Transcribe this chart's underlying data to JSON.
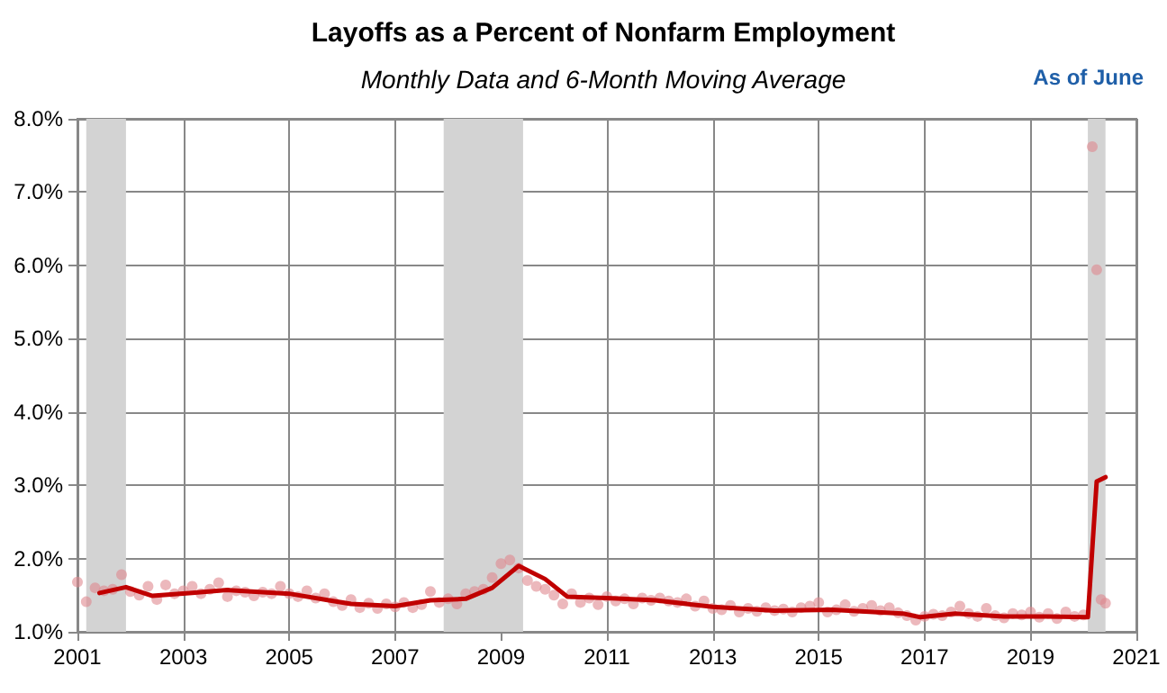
{
  "chart_data": {
    "type": "scatter",
    "title": "Layoffs as a Percent of Nonfarm Employment",
    "subtitle": "Monthly Data and 6-Month Moving Average",
    "annotations": [
      "As of June"
    ],
    "xlim": [
      "2001",
      "2021"
    ],
    "xticks": [
      "2001",
      "2003",
      "2005",
      "2007",
      "2009",
      "2011",
      "2013",
      "2015",
      "2017",
      "2019",
      "2021"
    ],
    "ylim": [
      1,
      8
    ],
    "yticks": [
      {
        "value": 1,
        "label": "1.0%"
      },
      {
        "value": 2,
        "label": "2.0%"
      },
      {
        "value": 3,
        "label": "3.0%"
      },
      {
        "value": 4,
        "label": "4.0%"
      },
      {
        "value": 5,
        "label": "5.0%"
      },
      {
        "value": 6,
        "label": "6.0%"
      },
      {
        "value": 7,
        "label": "7.0%"
      },
      {
        "value": 8,
        "label": "8.0%"
      }
    ],
    "grid": true,
    "bands": [
      {
        "axis": "x",
        "from": "2001-03",
        "to": "2001-12",
        "color": "#d3d3d3"
      },
      {
        "axis": "x",
        "from": "2007-12",
        "to": "2009-06",
        "color": "#d3d3d3"
      },
      {
        "axis": "x",
        "from": "2020-02",
        "to": "2020-06",
        "color": "#d3d3d3"
      }
    ],
    "series": [
      {
        "color": "#e08890",
        "marker": "circle",
        "x": [
          "2001-01",
          "2001-03",
          "2001-05",
          "2001-07",
          "2001-09",
          "2001-11",
          "2002-01",
          "2002-03",
          "2002-05",
          "2002-07",
          "2002-09",
          "2002-11",
          "2003-01",
          "2003-03",
          "2003-05",
          "2003-07",
          "2003-09",
          "2003-11",
          "2004-01",
          "2004-03",
          "2004-05",
          "2004-07",
          "2004-09",
          "2004-11",
          "2005-01",
          "2005-03",
          "2005-05",
          "2005-07",
          "2005-09",
          "2005-11",
          "2006-01",
          "2006-03",
          "2006-05",
          "2006-07",
          "2006-09",
          "2006-11",
          "2007-01",
          "2007-03",
          "2007-05",
          "2007-07",
          "2007-09",
          "2007-11",
          "2008-01",
          "2008-03",
          "2008-05",
          "2008-07",
          "2008-09",
          "2008-11",
          "2009-01",
          "2009-03",
          "2009-05",
          "2009-07",
          "2009-09",
          "2009-11",
          "2010-01",
          "2010-03",
          "2010-05",
          "2010-07",
          "2010-09",
          "2010-11",
          "2011-01",
          "2011-03",
          "2011-05",
          "2011-07",
          "2011-09",
          "2011-11",
          "2012-01",
          "2012-03",
          "2012-05",
          "2012-07",
          "2012-09",
          "2012-11",
          "2013-01",
          "2013-03",
          "2013-05",
          "2013-07",
          "2013-09",
          "2013-11",
          "2014-01",
          "2014-03",
          "2014-05",
          "2014-07",
          "2014-09",
          "2014-11",
          "2015-01",
          "2015-03",
          "2015-05",
          "2015-07",
          "2015-09",
          "2015-11",
          "2016-01",
          "2016-03",
          "2016-05",
          "2016-07",
          "2016-09",
          "2016-11",
          "2017-01",
          "2017-03",
          "2017-05",
          "2017-07",
          "2017-09",
          "2017-11",
          "2018-01",
          "2018-03",
          "2018-05",
          "2018-07",
          "2018-09",
          "2018-11",
          "2019-01",
          "2019-03",
          "2019-05",
          "2019-07",
          "2019-09",
          "2019-11",
          "2020-01",
          "2020-03",
          "2020-04",
          "2020-05",
          "2020-06"
        ],
        "values": [
          1.68,
          1.41,
          1.6,
          1.56,
          1.58,
          1.78,
          1.55,
          1.5,
          1.62,
          1.44,
          1.64,
          1.52,
          1.56,
          1.62,
          1.52,
          1.58,
          1.67,
          1.48,
          1.56,
          1.54,
          1.49,
          1.54,
          1.52,
          1.62,
          1.52,
          1.48,
          1.56,
          1.46,
          1.52,
          1.41,
          1.36,
          1.44,
          1.33,
          1.39,
          1.32,
          1.38,
          1.34,
          1.4,
          1.33,
          1.37,
          1.55,
          1.4,
          1.45,
          1.38,
          1.52,
          1.55,
          1.58,
          1.74,
          1.93,
          1.98,
          1.87,
          1.7,
          1.62,
          1.58,
          1.5,
          1.38,
          1.52,
          1.4,
          1.46,
          1.37,
          1.48,
          1.42,
          1.45,
          1.38,
          1.46,
          1.43,
          1.46,
          1.42,
          1.4,
          1.45,
          1.35,
          1.42,
          1.32,
          1.3,
          1.36,
          1.27,
          1.32,
          1.28,
          1.33,
          1.29,
          1.31,
          1.27,
          1.33,
          1.35,
          1.4,
          1.27,
          1.3,
          1.37,
          1.28,
          1.32,
          1.36,
          1.29,
          1.33,
          1.26,
          1.22,
          1.16,
          1.21,
          1.24,
          1.22,
          1.27,
          1.35,
          1.25,
          1.21,
          1.32,
          1.22,
          1.19,
          1.25,
          1.23,
          1.27,
          1.2,
          1.25,
          1.18,
          1.27,
          1.21,
          1.23,
          7.62,
          5.94,
          1.44,
          1.39
        ]
      },
      {
        "type": "line",
        "color": "#c00000",
        "marker": "none",
        "line_style": "solid",
        "x": [
          "2001-06",
          "2001-12",
          "2002-06",
          "2003-03",
          "2003-11",
          "2005-01",
          "2005-10",
          "2006-03",
          "2007-01",
          "2007-09",
          "2008-05",
          "2008-11",
          "2009-05",
          "2009-11",
          "2010-04",
          "2011-01",
          "2011-12",
          "2013-01",
          "2014-03",
          "2015-04",
          "2016-08",
          "2016-12",
          "2017-08",
          "2018-07",
          "2019-05",
          "2020-02",
          "2020-04",
          "2020-06"
        ],
        "values": [
          1.53,
          1.61,
          1.49,
          1.53,
          1.57,
          1.52,
          1.43,
          1.38,
          1.35,
          1.43,
          1.45,
          1.6,
          1.9,
          1.72,
          1.48,
          1.46,
          1.43,
          1.34,
          1.29,
          1.3,
          1.25,
          1.2,
          1.25,
          1.21,
          1.21,
          1.2,
          3.05,
          3.11
        ]
      }
    ]
  }
}
